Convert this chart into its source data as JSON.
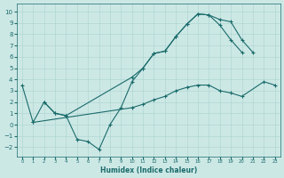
{
  "xlabel": "Humidex (Indice chaleur)",
  "background_color": "#cce8e5",
  "grid_color": "#aad4d0",
  "line_color": "#1a6b6b",
  "xlim": [
    -0.5,
    23.5
  ],
  "ylim": [
    -2.8,
    10.7
  ],
  "xticks": [
    0,
    1,
    2,
    3,
    4,
    5,
    6,
    7,
    8,
    9,
    10,
    11,
    12,
    13,
    14,
    15,
    16,
    17,
    18,
    19,
    20,
    21,
    22,
    23
  ],
  "yticks": [
    -2,
    -1,
    0,
    1,
    2,
    3,
    4,
    5,
    6,
    7,
    8,
    9,
    10
  ],
  "series": [
    {
      "x": [
        0,
        1,
        2,
        3,
        4,
        5,
        6,
        7,
        8,
        9,
        10,
        11,
        12,
        13,
        14,
        15,
        16,
        17,
        18,
        19,
        20,
        21
      ],
      "y": [
        3.5,
        0.2,
        2.0,
        1.0,
        0.8,
        -1.3,
        -1.5,
        -2.2,
        0.0,
        1.5,
        3.8,
        5.0,
        6.3,
        6.5,
        7.8,
        8.9,
        9.8,
        9.7,
        9.3,
        9.1,
        7.5,
        6.4
      ]
    },
    {
      "x": [
        2,
        3,
        4,
        10,
        11,
        12,
        13,
        14,
        15,
        16,
        17,
        18,
        19,
        20
      ],
      "y": [
        2.0,
        1.0,
        0.8,
        4.2,
        5.0,
        6.3,
        6.5,
        7.8,
        8.9,
        9.8,
        9.7,
        8.8,
        7.5,
        6.4
      ]
    },
    {
      "x": [
        1,
        10,
        11,
        12,
        13,
        14,
        15,
        16,
        17,
        18,
        19,
        20,
        22,
        23
      ],
      "y": [
        0.2,
        1.5,
        1.8,
        2.2,
        2.5,
        3.0,
        3.3,
        3.5,
        3.5,
        3.0,
        2.8,
        2.5,
        3.8,
        3.5
      ]
    }
  ]
}
